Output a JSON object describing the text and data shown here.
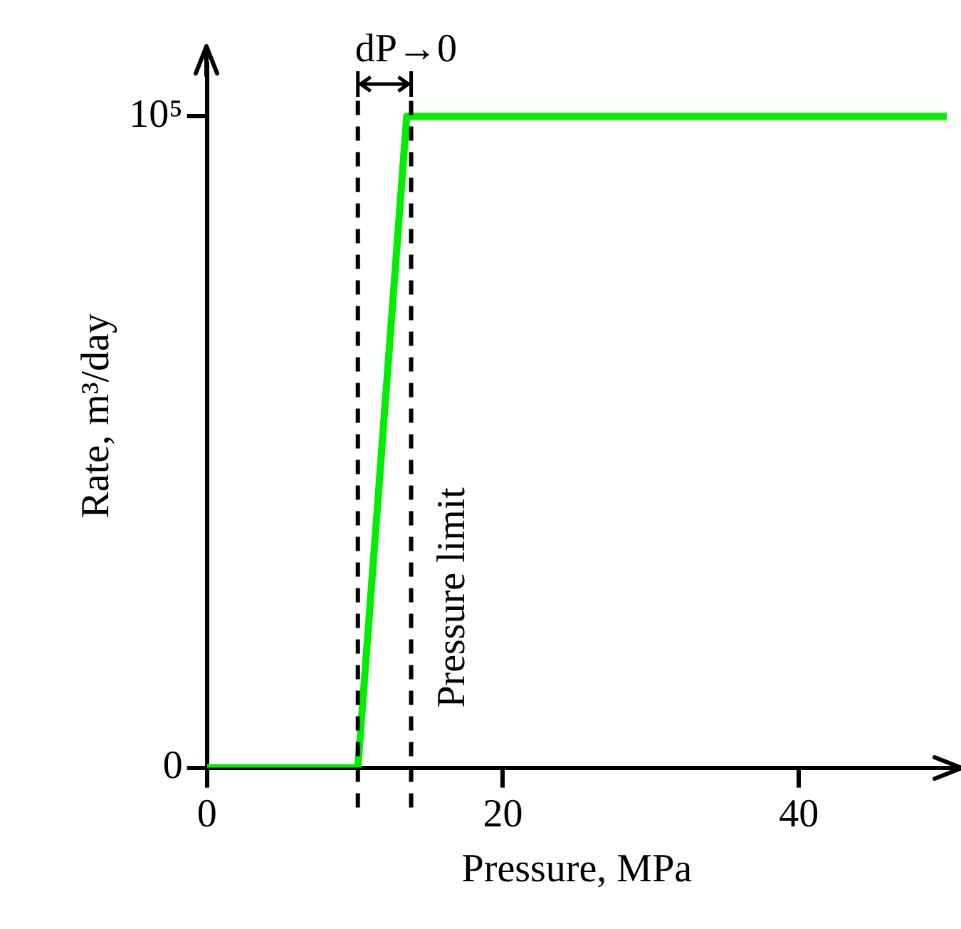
{
  "chart_data": {
    "type": "line",
    "xlabel": "Pressure, MPa",
    "ylabel": "Rate, m³/day",
    "x": [
      0,
      10.2,
      13.5,
      50
    ],
    "series": [
      {
        "color": "#00ee00",
        "values": [
          0,
          0,
          100000,
          100000
        ]
      }
    ],
    "xlim": [
      0,
      50
    ],
    "ylim": [
      0,
      108000
    ],
    "xticks": [
      0,
      20,
      40
    ],
    "yticks": [
      0,
      {
        "value": 100000,
        "label": "10⁵"
      }
    ],
    "ref_lines": [
      {
        "axis": "x",
        "value": 10.2,
        "label": null,
        "color": "#000000",
        "line_style": "dashed"
      },
      {
        "axis": "x",
        "value": 13.8,
        "label": "Pressure limit",
        "color": "#000000",
        "line_style": "dashed"
      }
    ],
    "annotations": [
      "dP→0"
    ],
    "grid": false,
    "legend": false,
    "marker": "none",
    "line_style": "solid"
  }
}
